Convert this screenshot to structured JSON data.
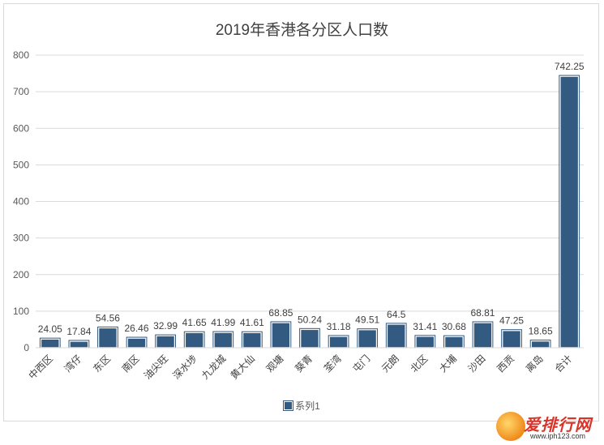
{
  "chart_data": {
    "type": "bar",
    "title": "2019年香港各分区人口数",
    "categories": [
      "中西区",
      "湾仔",
      "东区",
      "南区",
      "油尖旺",
      "深水埗",
      "九龙城",
      "黄大仙",
      "观塘",
      "葵青",
      "荃湾",
      "屯门",
      "元朗",
      "北区",
      "大埔",
      "沙田",
      "西贡",
      "离岛",
      "合计"
    ],
    "series": [
      {
        "name": "系列1",
        "values": [
          24.05,
          17.84,
          54.56,
          26.46,
          32.99,
          41.65,
          41.99,
          41.61,
          68.85,
          50.24,
          31.18,
          49.51,
          64.5,
          31.41,
          30.68,
          68.81,
          47.25,
          18.65,
          742.25
        ],
        "labels": [
          "24.05",
          "17.84",
          "54.56",
          "26.46",
          "32.99",
          "41.65",
          "41.99",
          "41.61",
          "68.85",
          "50.24",
          "31.18",
          "49.51",
          "64.5",
          "31.41",
          "30.68",
          "68.81",
          "47.25",
          "18.65",
          "742.25"
        ],
        "color": "#335a80"
      }
    ],
    "ylim": [
      0,
      800
    ],
    "yticks": [
      0,
      100,
      200,
      300,
      400,
      500,
      600,
      700,
      800
    ],
    "grid": true,
    "legend": "bottom"
  },
  "watermark": {
    "text": "爱排行网",
    "url": "www.iph123.com"
  }
}
